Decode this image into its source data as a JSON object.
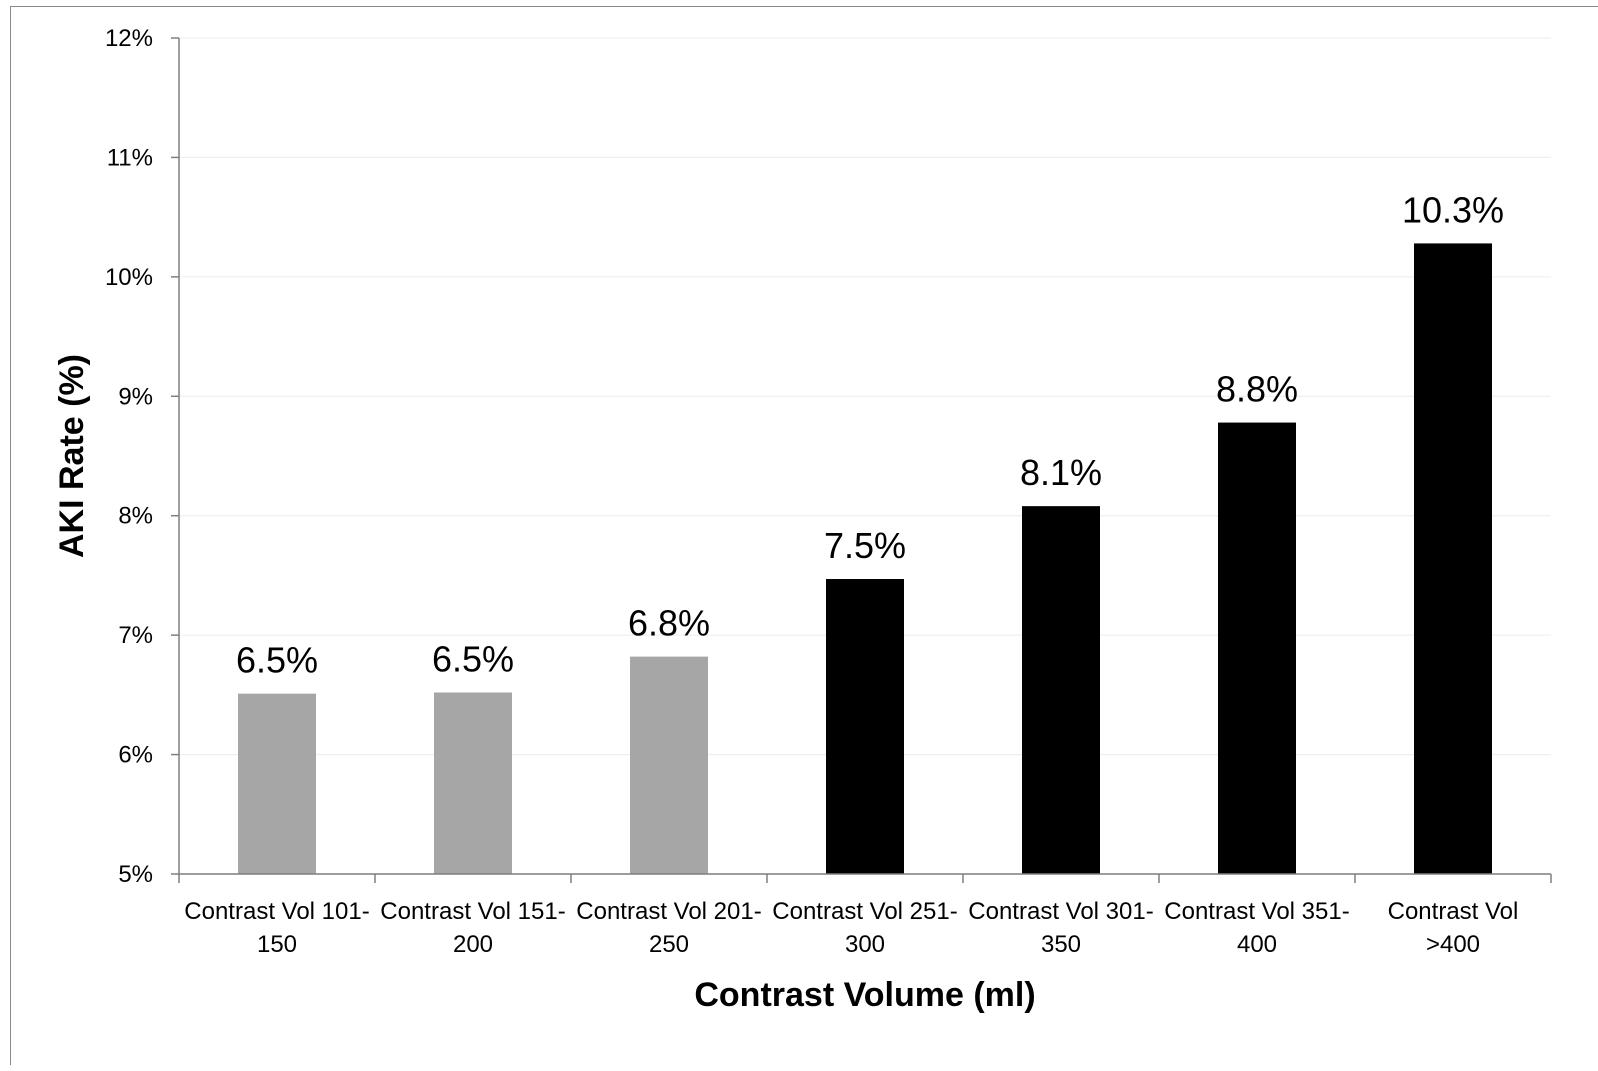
{
  "chart_data": {
    "type": "bar",
    "title": "",
    "xlabel": "Contrast Volume (ml)",
    "ylabel": "AKI Rate (%)",
    "ylim": [
      5,
      12
    ],
    "yticks": [
      "5%",
      "6%",
      "7%",
      "8%",
      "9%",
      "10%",
      "11%",
      "12%"
    ],
    "grid": true,
    "legend": "none",
    "categories": [
      [
        "Contrast Vol 101-",
        "150"
      ],
      [
        "Contrast Vol 151-",
        "200"
      ],
      [
        "Contrast Vol 201-",
        "250"
      ],
      [
        "Contrast Vol 251-",
        "300"
      ],
      [
        "Contrast Vol 301-",
        "350"
      ],
      [
        "Contrast Vol 351-",
        "400"
      ],
      [
        "Contrast Vol",
        ">400"
      ]
    ],
    "values": [
      6.51,
      6.52,
      6.82,
      7.47,
      8.08,
      8.78,
      10.28
    ],
    "data_labels": [
      "6.5%",
      "6.5%",
      "6.8%",
      "7.5%",
      "8.1%",
      "8.8%",
      "10.3%"
    ],
    "colors": [
      "#a6a6a6",
      "#a6a6a6",
      "#a6a6a6",
      "#000000",
      "#000000",
      "#000000",
      "#000000"
    ],
    "axis_color": "#7f7f7f",
    "grid_color": "#ececec"
  }
}
